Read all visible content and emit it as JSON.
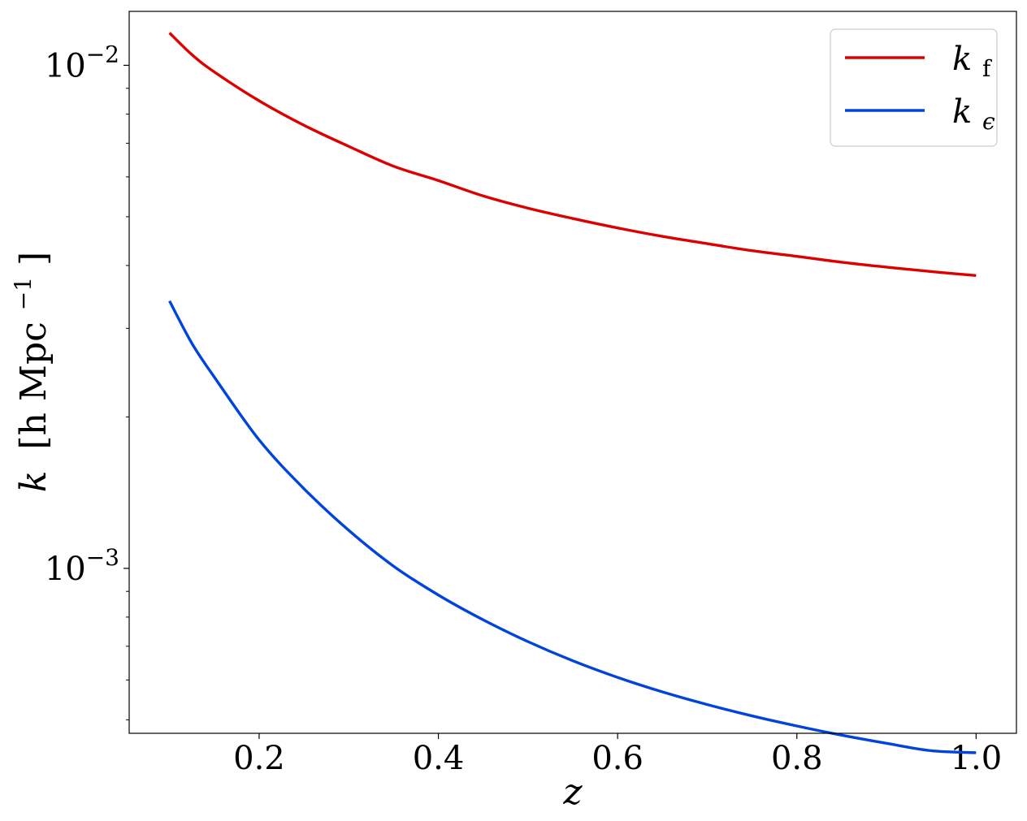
{
  "chart_data": {
    "type": "line",
    "xlabel": "z",
    "ylabel": {
      "prefix": "k",
      "units": "[h Mpc",
      "units_exp": "−1",
      "suffix": "]"
    },
    "xlim": [
      0.055,
      1.045
    ],
    "ylim": [
      0.00047,
      0.0128
    ],
    "yscale": "log",
    "grid": false,
    "legend_position": "top-right",
    "x_ticks": [
      {
        "value": 0.2,
        "label": "0.2"
      },
      {
        "value": 0.4,
        "label": "0.4"
      },
      {
        "value": 0.6,
        "label": "0.6"
      },
      {
        "value": 0.8,
        "label": "0.8"
      },
      {
        "value": 1.0,
        "label": "1.0"
      }
    ],
    "y_ticks": [
      {
        "value": 0.001,
        "base": "10",
        "exp": "−3"
      },
      {
        "value": 0.01,
        "base": "10",
        "exp": "−2"
      }
    ],
    "x": [
      0.1,
      0.125,
      0.15,
      0.2,
      0.25,
      0.3,
      0.35,
      0.4,
      0.45,
      0.5,
      0.55,
      0.6,
      0.65,
      0.7,
      0.75,
      0.8,
      0.85,
      0.9,
      0.95,
      1.0
    ],
    "series": [
      {
        "name": "k",
        "name_sub": "f",
        "color": "#dd0000",
        "values": [
          0.0116,
          0.0105,
          0.0097,
          0.0085,
          0.0076,
          0.0069,
          0.0063,
          0.0059,
          0.0055,
          0.0052,
          0.00496,
          0.00475,
          0.00457,
          0.00442,
          0.00428,
          0.00417,
          0.00406,
          0.00397,
          0.00389,
          0.00382
        ]
      },
      {
        "name": "k",
        "name_sub": "ϵ",
        "color": "#0044dd",
        "values": [
          0.0034,
          0.0028,
          0.0024,
          0.0018,
          0.00144,
          0.00119,
          0.00101,
          0.000885,
          0.00079,
          0.000715,
          0.000655,
          0.000607,
          0.000568,
          0.000536,
          0.000509,
          0.000486,
          0.000466,
          0.000449,
          0.000434,
          0.00043
        ]
      }
    ]
  }
}
